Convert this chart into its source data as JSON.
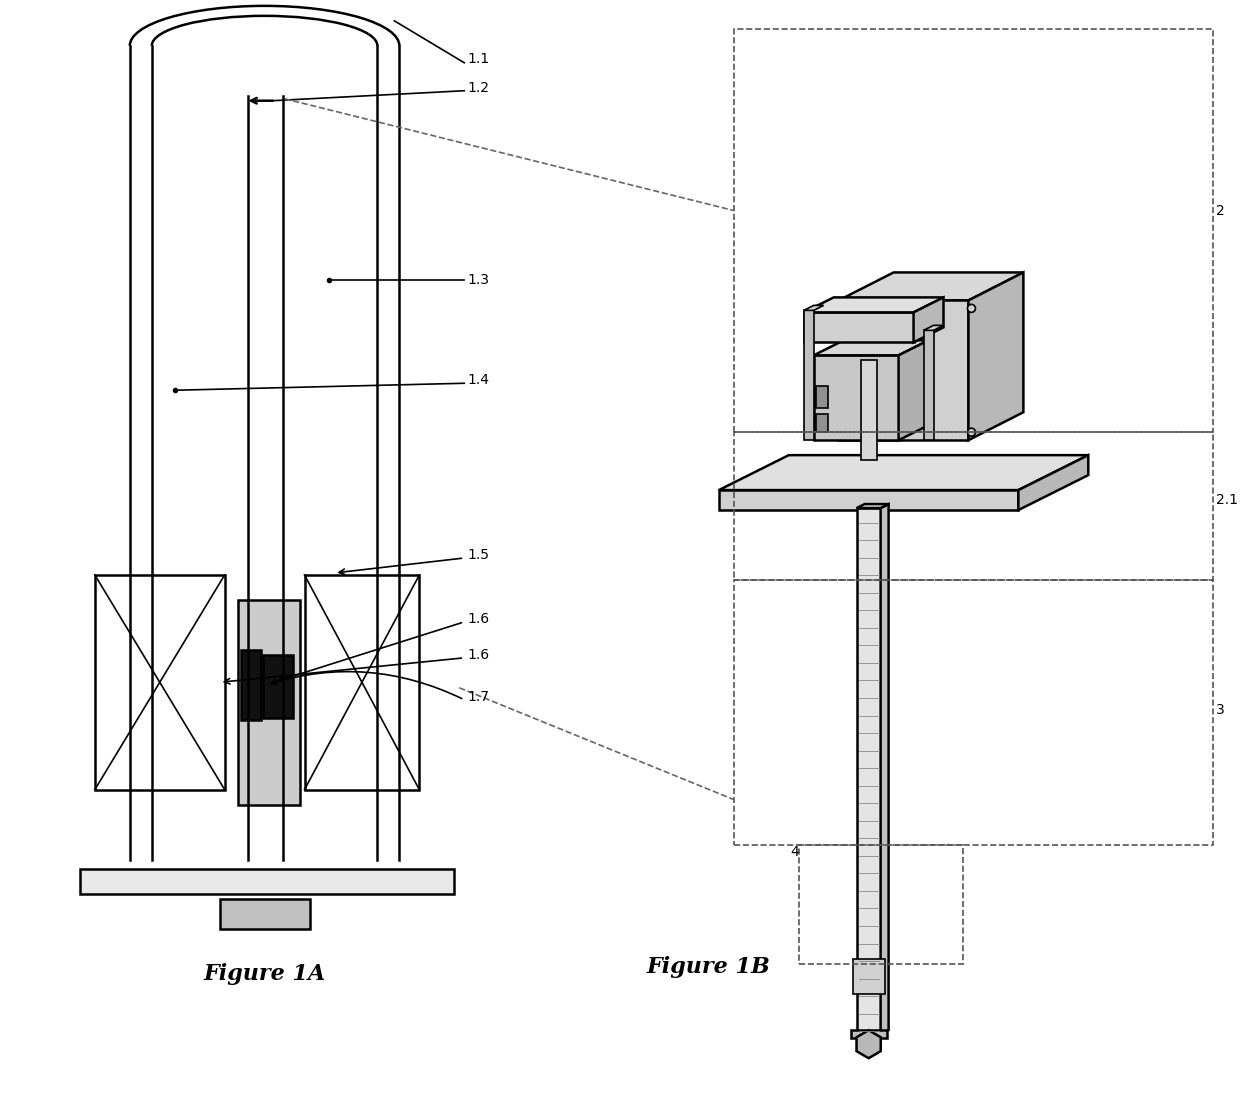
{
  "bg_color": "#ffffff",
  "line_color": "#000000",
  "fig1a_title": "Figure 1A",
  "fig1b_title": "Figure 1B",
  "font_size_label": 10,
  "font_size_title": 14
}
